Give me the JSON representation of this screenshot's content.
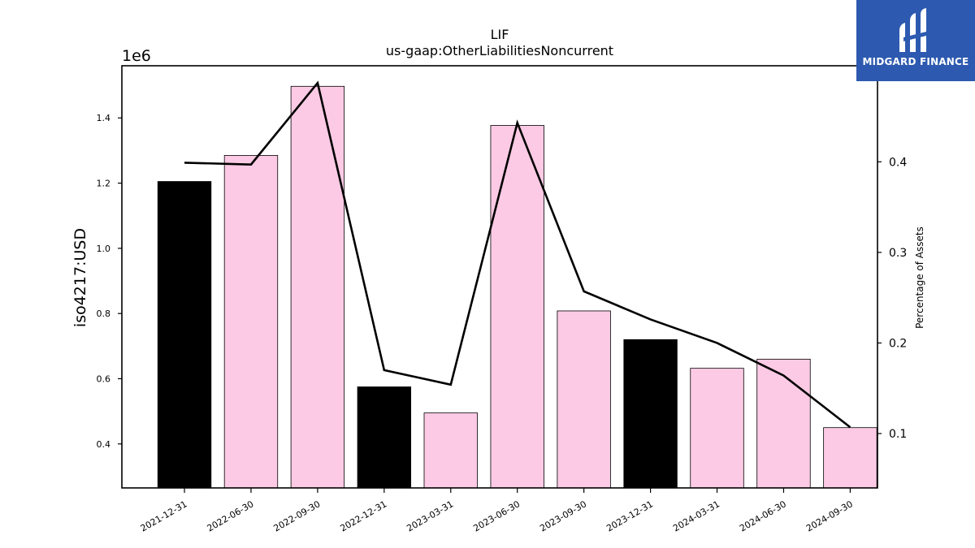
{
  "chart_data": {
    "type": "bar",
    "title": "LIF",
    "subtitle": "us-gaap:OtherLiabilitiesNoncurrent",
    "ylabel": "iso4217:USD",
    "y_offset_label": "1e6",
    "y2label": "Percentage of Assets",
    "categories": [
      "2021-12-31",
      "2022-06-30",
      "2022-09-30",
      "2022-12-31",
      "2023-03-31",
      "2023-06-30",
      "2023-09-30",
      "2023-12-31",
      "2024-03-31",
      "2024-06-30",
      "2024-09-30"
    ],
    "values": [
      1205000,
      1285000,
      1497000,
      575000,
      495000,
      1377000,
      808000,
      720000,
      632000,
      660000,
      450000
    ],
    "bar_colors": [
      "#000000",
      "#fccae4",
      "#fccae4",
      "#000000",
      "#fccae4",
      "#fccae4",
      "#fccae4",
      "#000000",
      "#fccae4",
      "#fccae4",
      "#fccae4"
    ],
    "ylim": [
      0.265,
      1.56
    ],
    "yticks": [
      0.4,
      0.6,
      0.8,
      1.0,
      1.2,
      1.4
    ],
    "ytick_labels": [
      "0.4",
      "0.6",
      "0.8",
      "1.0",
      "1.2",
      "1.4"
    ],
    "line_series": {
      "axis": "right",
      "color": "#000000",
      "values": [
        0.399,
        0.397,
        0.487,
        0.17,
        0.154,
        0.443,
        0.257,
        0.226,
        0.2,
        0.164,
        0.107
      ]
    },
    "y2lim": [
      0.04,
      0.506
    ],
    "y2ticks": [
      0.1,
      0.2,
      0.3,
      0.4
    ],
    "y2tick_labels": [
      "0.1",
      "0.2",
      "0.3",
      "0.4"
    ],
    "grid": false,
    "legend": "none"
  },
  "logo": {
    "text": "MIDGARD FINANCE",
    "color": "#2d5ab0"
  }
}
